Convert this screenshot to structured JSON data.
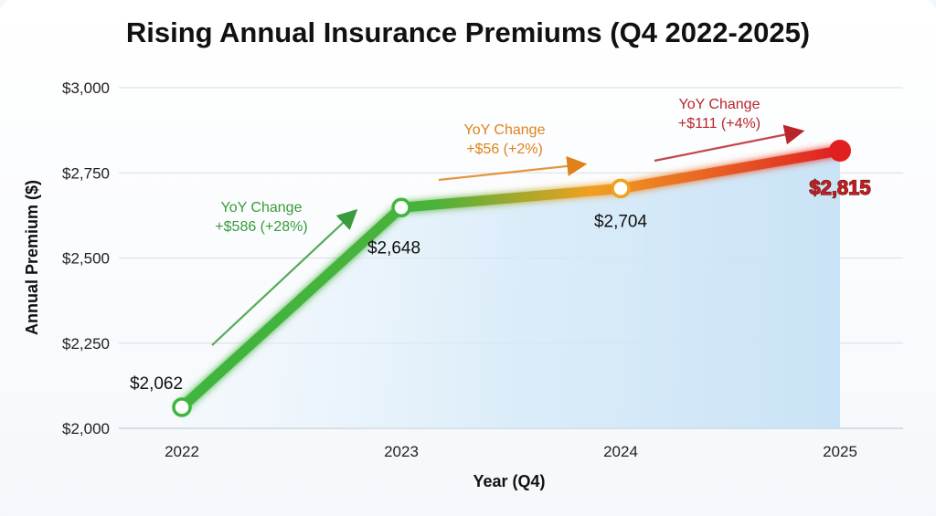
{
  "chart_data": {
    "type": "line",
    "title": "Rising Annual Insurance Premiums (Q4 2022-2025)",
    "xlabel": "Year (Q4)",
    "ylabel": "Annual Premium ($)",
    "categories": [
      "2022",
      "2023",
      "2024",
      "2025"
    ],
    "values": [
      2062,
      2648,
      2704,
      2815
    ],
    "value_labels": [
      "$2,062",
      "$2,648",
      "$2,704",
      "$2,815"
    ],
    "ylim": [
      2000,
      3000
    ],
    "yticks": [
      2000,
      2250,
      2500,
      2750,
      3000
    ],
    "ytick_labels": [
      "$2,000",
      "$2,250",
      "$2,500",
      "$2,750",
      "$3,000"
    ],
    "grid": true,
    "annotations": [
      {
        "line1": "YoY Change",
        "line2": "+$586 (+28%)",
        "color": "#3a9b3a"
      },
      {
        "line1": "YoY Change",
        "line2": "+$56 (+2%)",
        "color": "#e0821a"
      },
      {
        "line1": "YoY Change",
        "line2": "+$111 (+4%)",
        "color": "#b8262c"
      }
    ],
    "colors": {
      "start": "#3fb53f",
      "mid": "#f0a020",
      "end": "#e02020",
      "area": "#cfe6f7"
    }
  }
}
